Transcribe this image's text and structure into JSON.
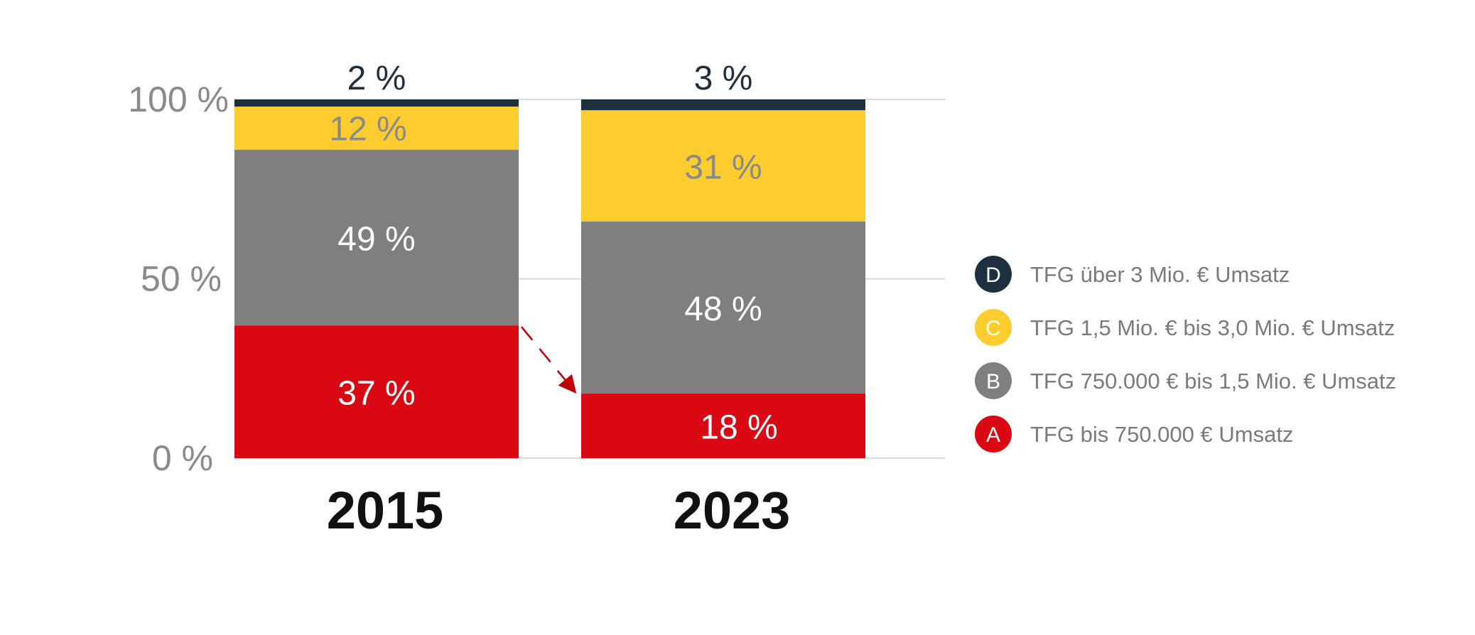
{
  "chart_data": {
    "type": "bar",
    "stacked": true,
    "categories": [
      "2015",
      "2023"
    ],
    "ylim": [
      0,
      100
    ],
    "y_ticks": [
      "0 %",
      "50 %",
      "100 %"
    ],
    "y_tick_values": [
      0,
      50,
      100
    ],
    "grid": true,
    "legend_position": "right",
    "series": [
      {
        "name": "TFG bis 750.000 € Umsatz",
        "letter": "A",
        "color": "#d90812",
        "label_color": "#ffffff",
        "values": [
          37,
          18
        ],
        "labels": [
          "37 %",
          "18 %"
        ]
      },
      {
        "name": "TFG 750.000 € bis 1,5 Mio. € Umsatz",
        "letter": "B",
        "color": "#7f7f7f",
        "label_color": "#ffffff",
        "values": [
          49,
          48
        ],
        "labels": [
          "49 %",
          "48 %"
        ]
      },
      {
        "name": "TFG 1,5 Mio. € bis 3,0 Mio. € Umsatz",
        "letter": "C",
        "color": "#fdcd30",
        "label_color": "#8a8a8a",
        "values": [
          12,
          31
        ],
        "labels": [
          "12 %",
          "31 %"
        ]
      },
      {
        "name": "TFG über 3 Mio. € Umsatz",
        "letter": "D",
        "color": "#1e3040",
        "label_color": "#1e3040",
        "values": [
          2,
          3
        ],
        "labels": [
          "2 %",
          "3 %"
        ]
      }
    ],
    "annotations": [
      {
        "type": "arrow",
        "from": "2015 segment A top",
        "to": "2023 segment A top",
        "color": "#c00000"
      }
    ]
  }
}
